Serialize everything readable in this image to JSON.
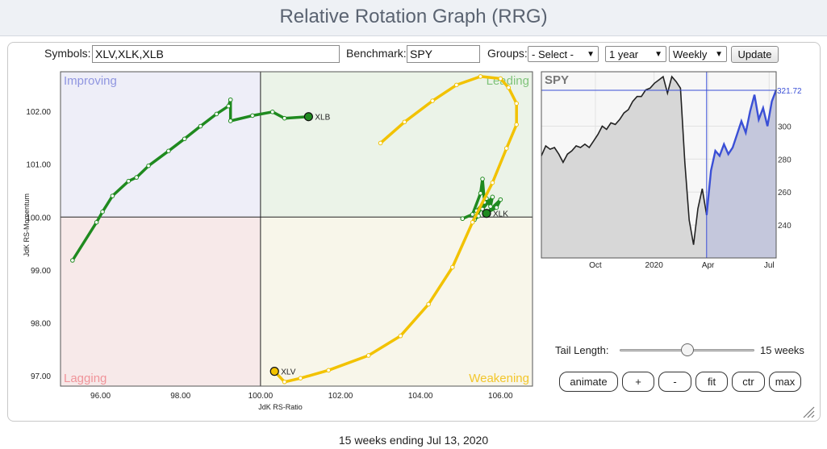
{
  "header": {
    "title": "Relative Rotation Graph (RRG)"
  },
  "toolbar": {
    "symbols_label": "Symbols:",
    "symbols_value": "XLV,XLK,XLB",
    "benchmark_label": "Benchmark:",
    "benchmark_value": "SPY",
    "groups_label": "Groups:",
    "groups_selected": "- Select -",
    "period_selected": "1 year",
    "frequency_selected": "Weekly",
    "update_label": "Update"
  },
  "rrg": {
    "quadrants": {
      "improving": "Improving",
      "leading": "Leading",
      "lagging": "Lagging",
      "weakening": "Weakening"
    },
    "colors": {
      "improving_bg": "#eeeef8",
      "leading_bg": "#ebf3e8",
      "lagging_bg": "#f7e9e9",
      "weakening_bg": "#f8f6ea",
      "improving_text": "#8f95e0",
      "leading_text": "#7fc37a",
      "lagging_text": "#f0949a",
      "weakening_text": "#f2c62b",
      "green": "#1f8a1f",
      "yellow": "#f2c200"
    },
    "xlabel": "JdK RS-Ratio",
    "ylabel": "JdK RS-Momentum",
    "xlim": [
      95,
      106.8
    ],
    "ylim": [
      96.8,
      102.75
    ],
    "xticks": [
      96,
      98,
      100,
      102,
      104,
      106
    ],
    "xtick_labels": [
      "96.00",
      "98.00",
      "100.00",
      "102.00",
      "104.00",
      "106.00"
    ],
    "yticks": [
      97,
      98,
      99,
      100,
      101,
      102
    ],
    "ytick_labels": [
      "97.00",
      "98.00",
      "99.00",
      "100.00",
      "101.00",
      "102.00"
    ],
    "series": [
      {
        "name": "XLB",
        "color": "#1f8a1f",
        "points": [
          [
            95.3,
            99.18
          ],
          [
            95.9,
            99.9
          ],
          [
            96.05,
            100.1
          ],
          [
            96.3,
            100.4
          ],
          [
            96.7,
            100.68
          ],
          [
            96.9,
            100.75
          ],
          [
            97.2,
            100.97
          ],
          [
            97.7,
            101.25
          ],
          [
            98.1,
            101.48
          ],
          [
            98.5,
            101.72
          ],
          [
            98.9,
            101.95
          ],
          [
            99.2,
            102.1
          ],
          [
            99.25,
            102.22
          ],
          [
            99.25,
            101.82
          ],
          [
            99.8,
            101.92
          ],
          [
            100.3,
            101.99
          ],
          [
            100.6,
            101.87
          ],
          [
            101.2,
            101.9
          ]
        ],
        "marker": [
          101.2,
          101.9
        ]
      },
      {
        "name": "XLK",
        "color": "#1f8a1f",
        "points": [
          [
            105.05,
            99.97
          ],
          [
            105.3,
            100.05
          ],
          [
            105.5,
            100.45
          ],
          [
            105.55,
            100.72
          ],
          [
            105.6,
            100.28
          ],
          [
            105.4,
            100.12
          ],
          [
            105.45,
            100.02
          ],
          [
            105.35,
            99.95
          ],
          [
            105.65,
            100.35
          ],
          [
            105.75,
            100.2
          ],
          [
            105.8,
            100.38
          ],
          [
            105.55,
            100.15
          ],
          [
            105.6,
            100.06
          ],
          [
            105.9,
            100.18
          ],
          [
            106.0,
            100.33
          ],
          [
            105.65,
            100.07
          ]
        ],
        "marker": [
          105.65,
          100.07
        ]
      },
      {
        "name": "XLV",
        "color": "#f2c200",
        "points": [
          [
            103.0,
            101.4
          ],
          [
            103.6,
            101.8
          ],
          [
            104.3,
            102.2
          ],
          [
            104.9,
            102.5
          ],
          [
            105.5,
            102.66
          ],
          [
            106.0,
            102.62
          ],
          [
            106.2,
            102.45
          ],
          [
            106.4,
            102.15
          ],
          [
            106.4,
            101.75
          ],
          [
            106.15,
            101.3
          ],
          [
            105.8,
            100.65
          ],
          [
            105.3,
            99.9
          ],
          [
            104.8,
            99.05
          ],
          [
            104.2,
            98.35
          ],
          [
            103.5,
            97.75
          ],
          [
            102.7,
            97.38
          ],
          [
            101.7,
            97.1
          ],
          [
            101.0,
            96.95
          ],
          [
            100.6,
            96.88
          ],
          [
            100.35,
            97.08
          ]
        ],
        "marker": [
          100.35,
          97.08
        ]
      }
    ]
  },
  "spy_chart": {
    "symbol": "SPY",
    "ylim": [
      220,
      333
    ],
    "yticks": [
      240,
      260,
      280,
      300
    ],
    "ytick_labels": [
      "240",
      "260",
      "280",
      "300"
    ],
    "xtick_labels": [
      "Oct",
      "2020",
      "Apr",
      "Jul"
    ],
    "last_value_label": "321.72",
    "last_value": 321.72,
    "tail_start_index": 38,
    "values": [
      282,
      288,
      286,
      287,
      283,
      278,
      283,
      285,
      288,
      287,
      289,
      287,
      291,
      295,
      300,
      298,
      302,
      301,
      304,
      308,
      310,
      315,
      318,
      318,
      322,
      323,
      326,
      328,
      330,
      320,
      330,
      327,
      323,
      278,
      243,
      228,
      250,
      262,
      246,
      273,
      285,
      282,
      289,
      283,
      287,
      295,
      303,
      296,
      309,
      319,
      304,
      311,
      300,
      315,
      322
    ]
  },
  "controls": {
    "tail_length_label": "Tail Length:",
    "tail_length_value": "15 weeks",
    "tail_length_position": 0.5,
    "buttons": {
      "animate": "animate",
      "plus": "+",
      "minus": "-",
      "fit": "fit",
      "ctr": "ctr",
      "max": "max"
    }
  },
  "footer": {
    "caption": "15 weeks ending Jul 13, 2020"
  }
}
